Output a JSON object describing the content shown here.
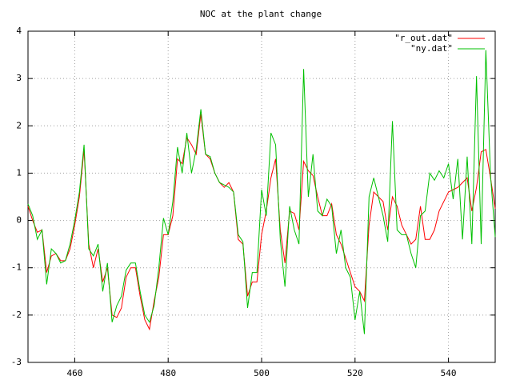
{
  "chart_data": {
    "type": "line",
    "title": "NOC at the plant change",
    "x": [
      450,
      451,
      452,
      453,
      454,
      455,
      456,
      457,
      458,
      459,
      460,
      461,
      462,
      463,
      464,
      465,
      466,
      467,
      468,
      469,
      470,
      471,
      472,
      473,
      474,
      475,
      476,
      477,
      478,
      479,
      480,
      481,
      482,
      483,
      484,
      485,
      486,
      487,
      488,
      489,
      490,
      491,
      492,
      493,
      494,
      495,
      496,
      497,
      498,
      499,
      500,
      501,
      502,
      503,
      504,
      505,
      506,
      507,
      508,
      509,
      510,
      511,
      512,
      513,
      514,
      515,
      516,
      517,
      518,
      519,
      520,
      521,
      522,
      523,
      524,
      525,
      526,
      527,
      528,
      529,
      530,
      531,
      532,
      533,
      534,
      535,
      536,
      537,
      538,
      539,
      540,
      541,
      542,
      543,
      544,
      545,
      546,
      547,
      548,
      549,
      550
    ],
    "series": [
      {
        "name": "\"r_out.dat\"",
        "color": "#ff0000",
        "values": [
          0.3,
          0.0,
          -0.25,
          -0.2,
          -1.1,
          -0.75,
          -0.7,
          -0.85,
          -0.85,
          -0.6,
          -0.1,
          0.5,
          1.5,
          -0.5,
          -1.0,
          -0.6,
          -1.3,
          -1.0,
          -2.0,
          -2.05,
          -1.85,
          -1.2,
          -1.0,
          -1.0,
          -1.6,
          -2.1,
          -2.3,
          -1.7,
          -1.2,
          -0.3,
          -0.3,
          0.1,
          1.3,
          1.2,
          1.75,
          1.6,
          1.4,
          2.25,
          1.4,
          1.3,
          1.0,
          0.8,
          0.7,
          0.8,
          0.6,
          -0.4,
          -0.5,
          -1.6,
          -1.3,
          -1.3,
          -0.3,
          0.2,
          0.9,
          1.3,
          -0.2,
          -0.9,
          0.2,
          0.15,
          -0.2,
          1.25,
          1.05,
          0.95,
          0.5,
          0.1,
          0.1,
          0.35,
          -0.3,
          -0.5,
          -0.8,
          -1.1,
          -1.4,
          -1.5,
          -1.7,
          -0.1,
          0.6,
          0.5,
          0.4,
          -0.2,
          0.5,
          0.3,
          -0.1,
          -0.3,
          -0.5,
          -0.4,
          0.3,
          -0.4,
          -0.4,
          -0.2,
          0.2,
          0.4,
          0.6,
          0.65,
          0.7,
          0.8,
          0.9,
          0.2,
          0.7,
          1.45,
          1.5,
          0.9,
          0.25
        ]
      },
      {
        "name": "\"ny.dat\"",
        "color": "#00c000",
        "values": [
          0.35,
          0.1,
          -0.4,
          -0.2,
          -1.35,
          -0.6,
          -0.7,
          -0.9,
          -0.85,
          -0.5,
          0.0,
          0.6,
          1.6,
          -0.6,
          -0.75,
          -0.5,
          -1.5,
          -0.9,
          -2.15,
          -1.8,
          -1.6,
          -1.05,
          -0.9,
          -0.9,
          -1.5,
          -2.0,
          -2.15,
          -1.8,
          -1.0,
          0.05,
          -0.3,
          0.4,
          1.55,
          1.0,
          1.85,
          1.0,
          1.5,
          2.35,
          1.4,
          1.35,
          1.0,
          0.8,
          0.75,
          0.7,
          0.6,
          -0.3,
          -0.45,
          -1.85,
          -1.1,
          -1.1,
          0.65,
          0.1,
          1.85,
          1.6,
          -0.4,
          -1.4,
          0.3,
          -0.2,
          -0.5,
          3.2,
          0.5,
          1.4,
          0.2,
          0.1,
          0.45,
          0.3,
          -0.7,
          -0.2,
          -1.0,
          -1.2,
          -2.1,
          -1.5,
          -2.4,
          0.5,
          0.9,
          0.5,
          0.1,
          -0.45,
          2.1,
          -0.2,
          -0.3,
          -0.3,
          -0.7,
          -1.0,
          0.1,
          0.2,
          1.0,
          0.85,
          1.05,
          0.9,
          1.2,
          0.45,
          1.3,
          -0.4,
          1.35,
          -0.5,
          3.05,
          -0.5,
          3.6,
          0.95,
          -0.35
        ]
      }
    ],
    "xlim": [
      450,
      550
    ],
    "xticks": [
      460,
      480,
      500,
      520,
      540
    ],
    "ylim": [
      -3,
      4
    ],
    "yticks": [
      -3,
      -2,
      -1,
      0,
      1,
      2,
      3,
      4
    ],
    "grid": true,
    "legend": "top-right"
  }
}
